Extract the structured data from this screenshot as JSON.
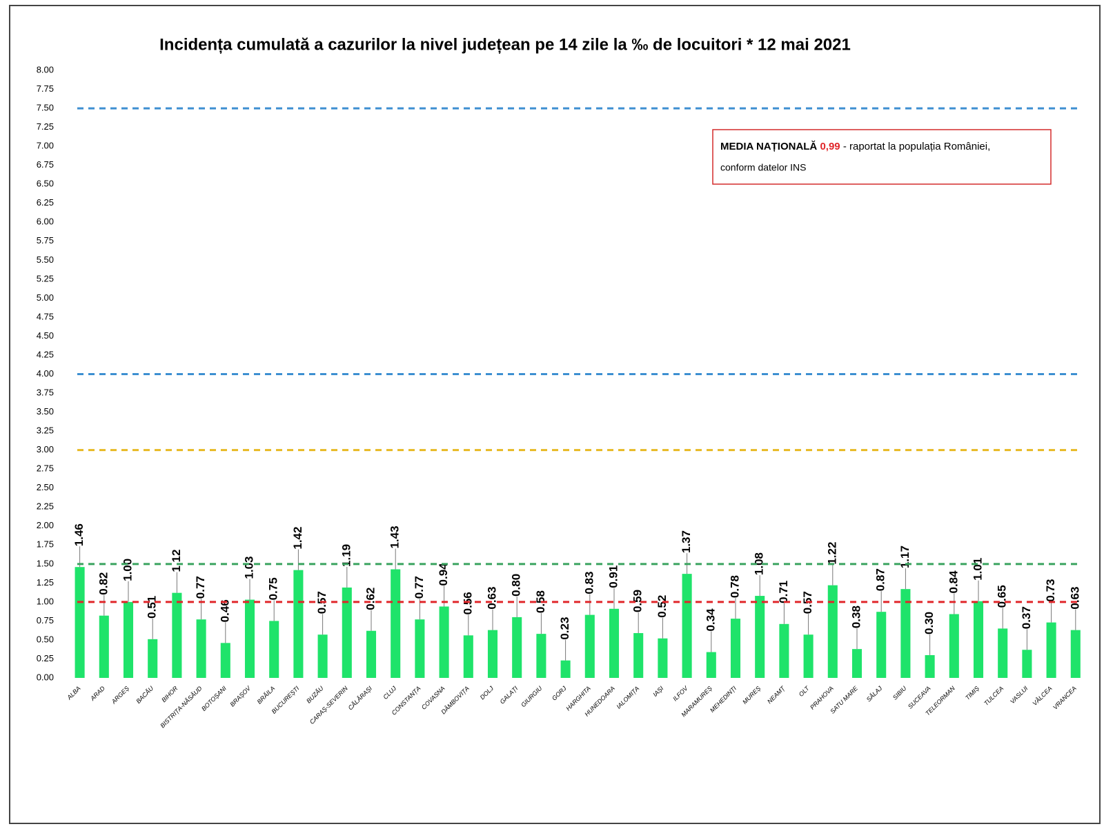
{
  "chart_data": {
    "type": "bar",
    "title": "Incidența cumulată a cazurilor la nivel județean pe 14 zile la ‰ de locuitori *  12 mai 2021",
    "categories": [
      "ALBA",
      "ARAD",
      "ARGEȘ",
      "BACĂU",
      "BIHOR",
      "BISTRIȚA-NĂSĂUD",
      "BOTOȘANI",
      "BRAȘOV",
      "BRĂILA",
      "BUCUREȘTI",
      "BUZĂU",
      "CARAȘ-SEVERIN",
      "CĂLĂRAȘI",
      "CLUJ",
      "CONSTANȚA",
      "COVASNA",
      "DÂMBOVIȚA",
      "DOLJ",
      "GALAȚI",
      "GIURGIU",
      "GORJ",
      "HARGHITA",
      "HUNEDOARA",
      "IALOMIȚA",
      "IAȘI",
      "ILFOV",
      "MARAMUREȘ",
      "MEHEDINȚI",
      "MUREȘ",
      "NEAMȚ",
      "OLT",
      "PRAHOVA",
      "SATU MARE",
      "SĂLAJ",
      "SIBIU",
      "SUCEAVA",
      "TELEORMAN",
      "TIMIȘ",
      "TULCEA",
      "VASLUI",
      "VÂLCEA",
      "VRANCEA"
    ],
    "values": [
      1.46,
      0.82,
      1.0,
      0.51,
      1.12,
      0.77,
      0.46,
      1.03,
      0.75,
      1.42,
      0.57,
      1.19,
      0.62,
      1.43,
      0.77,
      0.94,
      0.56,
      0.63,
      0.8,
      0.58,
      0.23,
      0.83,
      0.91,
      0.59,
      0.52,
      1.37,
      0.34,
      0.78,
      1.08,
      0.71,
      0.57,
      1.22,
      0.38,
      0.87,
      1.17,
      0.3,
      0.84,
      1.01,
      0.65,
      0.37,
      0.73,
      0.63
    ],
    "value_labels": [
      "1.46",
      "0.82",
      "1.00",
      "0.51",
      "1.12",
      "0.77",
      "0.46",
      "1.03",
      "0.75",
      "1.42",
      "0.57",
      "1.19",
      "0.62",
      "1.43",
      "0.77",
      "0.94",
      "0.56",
      "0.63",
      "0.80",
      "0.58",
      "0.23",
      "0.83",
      "0.91",
      "0.59",
      "0.52",
      "1.37",
      "0.34",
      "0.78",
      "1.08",
      "0.71",
      "0.57",
      "1.22",
      "0.38",
      "0.87",
      "1.17",
      "0.30",
      "0.84",
      "1.01",
      "0.65",
      "0.37",
      "0.73",
      "0.63"
    ],
    "color": "#1fe36a",
    "ylim": [
      0,
      8
    ],
    "yticks": [
      {
        "value": 0,
        "label": "0.00"
      },
      {
        "value": 0.25,
        "label": "0.25"
      },
      {
        "value": 0.5,
        "label": "0.50"
      },
      {
        "value": 0.75,
        "label": "0.75"
      },
      {
        "value": 1,
        "label": "1.00"
      },
      {
        "value": 1.25,
        "label": "1.25"
      },
      {
        "value": 1.5,
        "label": "1.50"
      },
      {
        "value": 1.75,
        "label": "1.75"
      },
      {
        "value": 2,
        "label": "2.00"
      },
      {
        "value": 2.25,
        "label": "2.25"
      },
      {
        "value": 2.5,
        "label": "2.50"
      },
      {
        "value": 2.75,
        "label": "2.75"
      },
      {
        "value": 3,
        "label": "3.00"
      },
      {
        "value": 3.25,
        "label": "3.25"
      },
      {
        "value": 3.5,
        "label": "3.50"
      },
      {
        "value": 3.75,
        "label": "3.75"
      },
      {
        "value": 4,
        "label": "4.00"
      },
      {
        "value": 4.25,
        "label": "4.25"
      },
      {
        "value": 4.5,
        "label": "4.50"
      },
      {
        "value": 4.75,
        "label": "4.75"
      },
      {
        "value": 5,
        "label": "5.00"
      },
      {
        "value": 5.25,
        "label": "5.25"
      },
      {
        "value": 5.5,
        "label": "5.50"
      },
      {
        "value": 5.75,
        "label": "5.75"
      },
      {
        "value": 6,
        "label": "6.00"
      },
      {
        "value": 6.25,
        "label": "6.25"
      },
      {
        "value": 6.5,
        "label": "6.50"
      },
      {
        "value": 6.75,
        "label": "6.75"
      },
      {
        "value": 7,
        "label": "7.00"
      },
      {
        "value": 7.25,
        "label": "7.25"
      },
      {
        "value": 7.5,
        "label": "7.50"
      },
      {
        "value": 7.75,
        "label": "7.75"
      },
      {
        "value": 8,
        "label": "8.00"
      }
    ],
    "grid": false,
    "reference_lines": [
      {
        "value": 7.5,
        "color": "#3d8fd1"
      },
      {
        "value": 4,
        "color": "#3d8fd1"
      },
      {
        "value": 3,
        "color": "#e8b923"
      },
      {
        "value": 1.5,
        "color": "#3aa35f"
      },
      {
        "value": 1,
        "color": "#e0262a"
      }
    ],
    "annotation": {
      "heading": "MEDIA NAȚIONALĂ",
      "value": "0,99",
      "text": "- raportat la populația României,",
      "text2": "conform datelor INS"
    }
  }
}
